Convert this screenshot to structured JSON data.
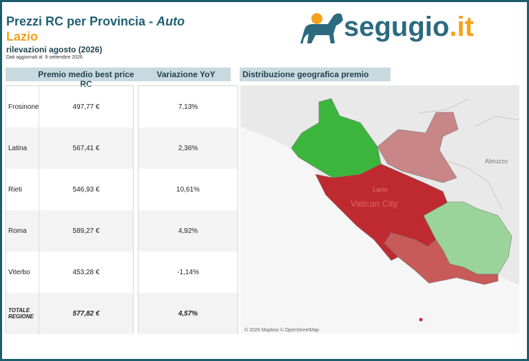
{
  "header": {
    "title": "Prezzi RC per Provincia - ",
    "title_em": "Auto",
    "region": "Lazio",
    "subtitle": "rilevazioni agosto (2026)",
    "updated": "Dati aggiornati al  9 settembre 2026"
  },
  "logo": {
    "name": "segugio",
    "tld": ".it"
  },
  "table": {
    "columns": [
      "Premio medio best price RC",
      "Variazione YoY"
    ],
    "rows": [
      [
        "Frosinone",
        "497,77 €",
        "7,13%"
      ],
      [
        "Latina",
        "567,41 €",
        "2,36%"
      ],
      [
        "Rieti",
        "546,93 €",
        "10,61%"
      ],
      [
        "Roma",
        "589,27 €",
        "4,92%"
      ],
      [
        "Viterbo",
        "453,28 €",
        "-1,14%"
      ]
    ],
    "total": [
      "TOTALE REGIONE",
      "577,82 €",
      "4,57%"
    ]
  },
  "map": {
    "title": "Distribuzione geografica premio",
    "labels": [
      "Abruzzo",
      "Lazio",
      "Vatican City"
    ],
    "attribution": "© 2026 Mapbox © OpenStreetMap"
  }
}
